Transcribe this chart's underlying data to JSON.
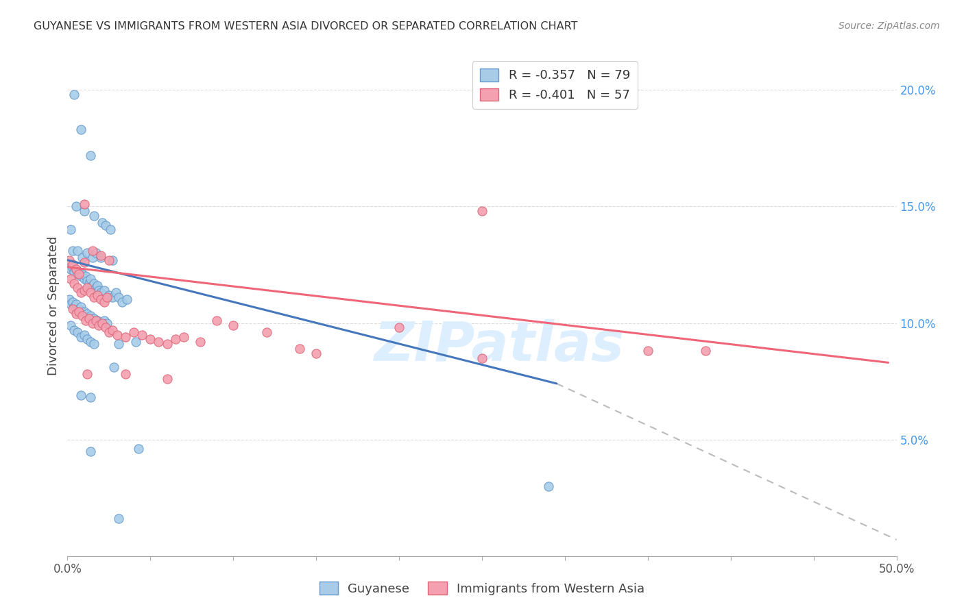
{
  "title": "GUYANESE VS IMMIGRANTS FROM WESTERN ASIA DIVORCED OR SEPARATED CORRELATION CHART",
  "source": "Source: ZipAtlas.com",
  "ylabel": "Divorced or Separated",
  "xlim": [
    0.0,
    0.5
  ],
  "ylim": [
    0.0,
    0.215
  ],
  "xticks": [
    0.0,
    0.05,
    0.1,
    0.15,
    0.2,
    0.25,
    0.3,
    0.35,
    0.4,
    0.45,
    0.5
  ],
  "yticks_right": [
    0.05,
    0.1,
    0.15,
    0.2
  ],
  "ytick_labels_right": [
    "5.0%",
    "10.0%",
    "15.0%",
    "20.0%"
  ],
  "blue_scatter": [
    [
      0.004,
      0.198
    ],
    [
      0.008,
      0.183
    ],
    [
      0.014,
      0.172
    ],
    [
      0.002,
      0.14
    ],
    [
      0.005,
      0.15
    ],
    [
      0.01,
      0.148
    ],
    [
      0.016,
      0.146
    ],
    [
      0.021,
      0.143
    ],
    [
      0.003,
      0.131
    ],
    [
      0.006,
      0.131
    ],
    [
      0.009,
      0.128
    ],
    [
      0.012,
      0.13
    ],
    [
      0.015,
      0.128
    ],
    [
      0.017,
      0.13
    ],
    [
      0.02,
      0.128
    ],
    [
      0.023,
      0.142
    ],
    [
      0.026,
      0.14
    ],
    [
      0.001,
      0.124
    ],
    [
      0.002,
      0.123
    ],
    [
      0.003,
      0.124
    ],
    [
      0.004,
      0.122
    ],
    [
      0.005,
      0.123
    ],
    [
      0.006,
      0.121
    ],
    [
      0.007,
      0.122
    ],
    [
      0.008,
      0.12
    ],
    [
      0.009,
      0.121
    ],
    [
      0.01,
      0.119
    ],
    [
      0.011,
      0.12
    ],
    [
      0.012,
      0.118
    ],
    [
      0.013,
      0.117
    ],
    [
      0.014,
      0.119
    ],
    [
      0.015,
      0.116
    ],
    [
      0.016,
      0.117
    ],
    [
      0.017,
      0.115
    ],
    [
      0.018,
      0.116
    ],
    [
      0.019,
      0.114
    ],
    [
      0.02,
      0.113
    ],
    [
      0.022,
      0.114
    ],
    [
      0.025,
      0.112
    ],
    [
      0.027,
      0.111
    ],
    [
      0.029,
      0.113
    ],
    [
      0.031,
      0.111
    ],
    [
      0.033,
      0.109
    ],
    [
      0.001,
      0.11
    ],
    [
      0.002,
      0.108
    ],
    [
      0.003,
      0.109
    ],
    [
      0.004,
      0.107
    ],
    [
      0.005,
      0.108
    ],
    [
      0.007,
      0.106
    ],
    [
      0.008,
      0.107
    ],
    [
      0.01,
      0.105
    ],
    [
      0.012,
      0.104
    ],
    [
      0.014,
      0.103
    ],
    [
      0.016,
      0.102
    ],
    [
      0.018,
      0.101
    ],
    [
      0.02,
      0.1
    ],
    [
      0.022,
      0.101
    ],
    [
      0.024,
      0.1
    ],
    [
      0.002,
      0.099
    ],
    [
      0.004,
      0.097
    ],
    [
      0.006,
      0.096
    ],
    [
      0.008,
      0.094
    ],
    [
      0.01,
      0.095
    ],
    [
      0.012,
      0.093
    ],
    [
      0.014,
      0.092
    ],
    [
      0.016,
      0.091
    ],
    [
      0.031,
      0.091
    ],
    [
      0.027,
      0.127
    ],
    [
      0.036,
      0.11
    ],
    [
      0.041,
      0.092
    ],
    [
      0.008,
      0.069
    ],
    [
      0.014,
      0.068
    ],
    [
      0.028,
      0.081
    ],
    [
      0.014,
      0.045
    ],
    [
      0.043,
      0.046
    ],
    [
      0.29,
      0.03
    ],
    [
      0.031,
      0.016
    ]
  ],
  "pink_scatter": [
    [
      0.001,
      0.127
    ],
    [
      0.003,
      0.125
    ],
    [
      0.005,
      0.123
    ],
    [
      0.007,
      0.121
    ],
    [
      0.01,
      0.126
    ],
    [
      0.015,
      0.131
    ],
    [
      0.02,
      0.129
    ],
    [
      0.025,
      0.127
    ],
    [
      0.002,
      0.119
    ],
    [
      0.004,
      0.117
    ],
    [
      0.006,
      0.115
    ],
    [
      0.008,
      0.113
    ],
    [
      0.01,
      0.114
    ],
    [
      0.012,
      0.115
    ],
    [
      0.014,
      0.113
    ],
    [
      0.016,
      0.111
    ],
    [
      0.018,
      0.112
    ],
    [
      0.02,
      0.11
    ],
    [
      0.022,
      0.109
    ],
    [
      0.024,
      0.111
    ],
    [
      0.003,
      0.106
    ],
    [
      0.005,
      0.104
    ],
    [
      0.007,
      0.105
    ],
    [
      0.009,
      0.103
    ],
    [
      0.011,
      0.101
    ],
    [
      0.013,
      0.102
    ],
    [
      0.015,
      0.1
    ],
    [
      0.017,
      0.101
    ],
    [
      0.019,
      0.099
    ],
    [
      0.021,
      0.1
    ],
    [
      0.023,
      0.098
    ],
    [
      0.025,
      0.096
    ],
    [
      0.027,
      0.097
    ],
    [
      0.03,
      0.095
    ],
    [
      0.035,
      0.094
    ],
    [
      0.04,
      0.096
    ],
    [
      0.045,
      0.095
    ],
    [
      0.05,
      0.093
    ],
    [
      0.055,
      0.092
    ],
    [
      0.06,
      0.091
    ],
    [
      0.065,
      0.093
    ],
    [
      0.07,
      0.094
    ],
    [
      0.08,
      0.092
    ],
    [
      0.09,
      0.101
    ],
    [
      0.1,
      0.099
    ],
    [
      0.12,
      0.096
    ],
    [
      0.14,
      0.089
    ],
    [
      0.15,
      0.087
    ],
    [
      0.2,
      0.098
    ],
    [
      0.25,
      0.085
    ],
    [
      0.35,
      0.088
    ],
    [
      0.385,
      0.088
    ],
    [
      0.01,
      0.151
    ],
    [
      0.25,
      0.148
    ],
    [
      0.012,
      0.078
    ],
    [
      0.035,
      0.078
    ],
    [
      0.06,
      0.076
    ]
  ],
  "blue_line_x": [
    0.0,
    0.295
  ],
  "blue_line_y": [
    0.127,
    0.074
  ],
  "pink_line_x": [
    0.0,
    0.495
  ],
  "pink_line_y": [
    0.124,
    0.083
  ],
  "dashed_line_x": [
    0.295,
    0.5
  ],
  "dashed_line_y": [
    0.074,
    0.007
  ],
  "blue_scatter_color": "#a8cce8",
  "blue_edge_color": "#6699cc",
  "pink_scatter_color": "#f4a0b0",
  "pink_edge_color": "#dd6677",
  "blue_line_color": "#4477bb",
  "pink_line_color": "#ee6677",
  "dashed_color": "#bbbbbb",
  "background_color": "#ffffff",
  "watermark": "ZIPatlas",
  "watermark_color": "#ddeeff",
  "grid_color": "#dddddd",
  "right_tick_color": "#4499ee",
  "title_color": "#333333",
  "source_color": "#888888",
  "ylabel_color": "#444444"
}
